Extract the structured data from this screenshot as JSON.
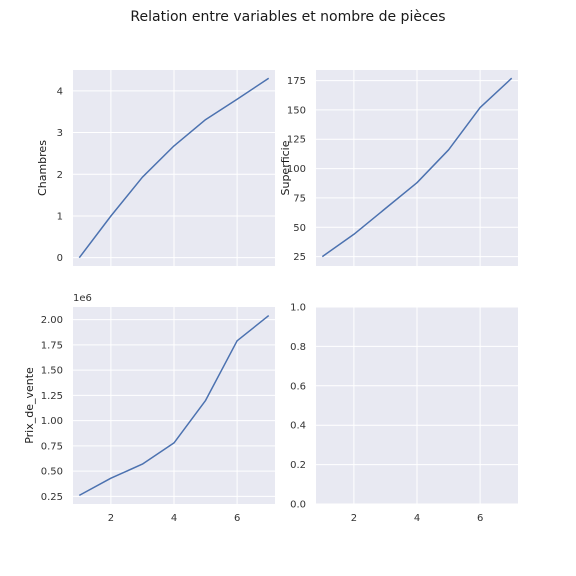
{
  "figure": {
    "title": "Relation entre variables et nombre de pièces",
    "colors": {
      "panel_bg": "#e8e9f2",
      "grid": "#ffffff",
      "line": "#4c72b0",
      "text": "#262626"
    }
  },
  "chart_data": [
    {
      "type": "line",
      "title": "",
      "xlabel": "",
      "ylabel": "Chambres",
      "x": [
        1,
        2,
        3,
        4,
        5,
        6,
        7
      ],
      "y": [
        0.0,
        1.0,
        1.93,
        2.68,
        3.31,
        3.8,
        4.3
      ],
      "xlim": [
        0.8,
        7.2
      ],
      "ylim": [
        -0.2,
        4.5
      ],
      "xticks": [
        2,
        4,
        6
      ],
      "yticks": [
        0,
        1,
        2,
        3,
        4
      ],
      "ytick_labels": [
        "0",
        "1",
        "2",
        "3",
        "4"
      ],
      "show_xtick_labels": false,
      "grid": true
    },
    {
      "type": "line",
      "title": "",
      "xlabel": "",
      "ylabel": "Superficie",
      "x": [
        1,
        2,
        3,
        4,
        5,
        6,
        7
      ],
      "y": [
        25,
        44,
        66,
        88,
        116,
        152,
        177
      ],
      "xlim": [
        0.8,
        7.2
      ],
      "ylim": [
        17,
        184
      ],
      "xticks": [
        2,
        4,
        6
      ],
      "yticks": [
        25,
        50,
        75,
        100,
        125,
        150,
        175
      ],
      "ytick_labels": [
        "25",
        "50",
        "75",
        "100",
        "125",
        "150",
        "175"
      ],
      "show_xtick_labels": false,
      "grid": true
    },
    {
      "type": "line",
      "title": "",
      "xlabel": "",
      "ylabel": "Prix_de_vente",
      "y_offset_label": "1e6",
      "x": [
        1,
        2,
        3,
        4,
        5,
        6,
        7
      ],
      "y": [
        0.26,
        0.43,
        0.57,
        0.78,
        1.2,
        1.79,
        2.04
      ],
      "xlim": [
        0.8,
        7.2
      ],
      "ylim": [
        0.175,
        2.125
      ],
      "xticks": [
        2,
        4,
        6
      ],
      "xtick_labels": [
        "2",
        "4",
        "6"
      ],
      "yticks": [
        0.25,
        0.5,
        0.75,
        1.0,
        1.25,
        1.5,
        1.75,
        2.0
      ],
      "ytick_labels": [
        "0.25",
        "0.50",
        "0.75",
        "1.00",
        "1.25",
        "1.50",
        "1.75",
        "2.00"
      ],
      "show_xtick_labels": true,
      "grid": true
    },
    {
      "type": "line",
      "title": "",
      "xlabel": "",
      "ylabel": "",
      "x": [],
      "y": [],
      "xlim": [
        0.8,
        7.2
      ],
      "ylim": [
        0.0,
        1.0
      ],
      "xticks": [
        2,
        4,
        6
      ],
      "xtick_labels": [
        "2",
        "4",
        "6"
      ],
      "yticks": [
        0.0,
        0.2,
        0.4,
        0.6,
        0.8,
        1.0
      ],
      "ytick_labels": [
        "0.0",
        "0.2",
        "0.4",
        "0.6",
        "0.8",
        "1.0"
      ],
      "show_xtick_labels": true,
      "grid": true
    }
  ]
}
